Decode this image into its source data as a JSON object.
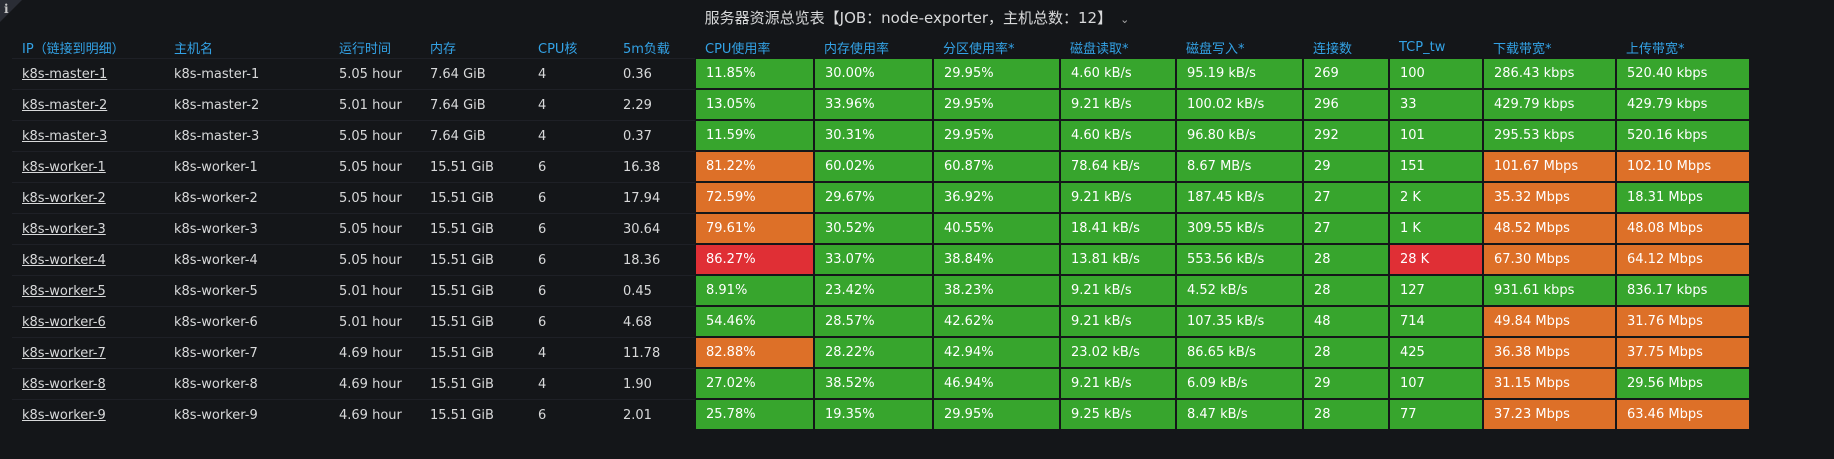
{
  "panel": {
    "title": "服务器资源总览表【JOB：node-exporter，主机总数：12】",
    "info_icon": "info-icon",
    "menu_icon": "chevron-down-icon"
  },
  "colors": {
    "ok": "#37a52d",
    "warn": "#dd7028",
    "crit": "#e02f35",
    "header": "#33a2e5"
  },
  "columns": [
    "IP（链接到明细）",
    "主机名",
    "运行时间",
    "内存",
    "CPU核",
    "5m负载",
    "CPU使用率",
    "内存使用率",
    "分区使用率*",
    "磁盘读取*",
    "磁盘写入*",
    "连接数",
    "TCP_tw",
    "下载带宽*",
    "上传带宽*"
  ],
  "rows": [
    {
      "cells": [
        "k8s-master-1",
        "k8s-master-1",
        "5.05 hour",
        "7.64 GiB",
        "4",
        "0.36",
        "11.85%",
        "30.00%",
        "29.95%",
        "4.60 kB/s",
        "95.19 kB/s",
        "269",
        "100",
        "286.43 kbps",
        "520.40 kbps"
      ],
      "status": [
        "",
        "",
        "",
        "",
        "",
        "",
        "ok",
        "ok",
        "ok",
        "ok",
        "ok",
        "ok",
        "ok",
        "ok",
        "ok"
      ]
    },
    {
      "cells": [
        "k8s-master-2",
        "k8s-master-2",
        "5.01 hour",
        "7.64 GiB",
        "4",
        "2.29",
        "13.05%",
        "33.96%",
        "29.95%",
        "9.21 kB/s",
        "100.02 kB/s",
        "296",
        "33",
        "429.79 kbps",
        "429.79 kbps"
      ],
      "status": [
        "",
        "",
        "",
        "",
        "",
        "",
        "ok",
        "ok",
        "ok",
        "ok",
        "ok",
        "ok",
        "ok",
        "ok",
        "ok"
      ]
    },
    {
      "cells": [
        "k8s-master-3",
        "k8s-master-3",
        "5.05 hour",
        "7.64 GiB",
        "4",
        "0.37",
        "11.59%",
        "30.31%",
        "29.95%",
        "4.60 kB/s",
        "96.80 kB/s",
        "292",
        "101",
        "295.53 kbps",
        "520.16 kbps"
      ],
      "status": [
        "",
        "",
        "",
        "",
        "",
        "",
        "ok",
        "ok",
        "ok",
        "ok",
        "ok",
        "ok",
        "ok",
        "ok",
        "ok"
      ]
    },
    {
      "cells": [
        "k8s-worker-1",
        "k8s-worker-1",
        "5.05 hour",
        "15.51 GiB",
        "6",
        "16.38",
        "81.22%",
        "60.02%",
        "60.87%",
        "78.64 kB/s",
        "8.67 MB/s",
        "29",
        "151",
        "101.67 Mbps",
        "102.10 Mbps"
      ],
      "status": [
        "",
        "",
        "",
        "",
        "",
        "",
        "warn",
        "ok",
        "ok",
        "ok",
        "ok",
        "ok",
        "ok",
        "warn",
        "warn"
      ]
    },
    {
      "cells": [
        "k8s-worker-2",
        "k8s-worker-2",
        "5.05 hour",
        "15.51 GiB",
        "6",
        "17.94",
        "72.59%",
        "29.67%",
        "36.92%",
        "9.21 kB/s",
        "187.45 kB/s",
        "27",
        "2 K",
        "35.32 Mbps",
        "18.31 Mbps"
      ],
      "status": [
        "",
        "",
        "",
        "",
        "",
        "",
        "warn",
        "ok",
        "ok",
        "ok",
        "ok",
        "ok",
        "ok",
        "warn",
        "ok"
      ]
    },
    {
      "cells": [
        "k8s-worker-3",
        "k8s-worker-3",
        "5.05 hour",
        "15.51 GiB",
        "6",
        "30.64",
        "79.61%",
        "30.52%",
        "40.55%",
        "18.41 kB/s",
        "309.55 kB/s",
        "27",
        "1 K",
        "48.52 Mbps",
        "48.08 Mbps"
      ],
      "status": [
        "",
        "",
        "",
        "",
        "",
        "",
        "warn",
        "ok",
        "ok",
        "ok",
        "ok",
        "ok",
        "ok",
        "warn",
        "warn"
      ]
    },
    {
      "cells": [
        "k8s-worker-4",
        "k8s-worker-4",
        "5.05 hour",
        "15.51 GiB",
        "6",
        "18.36",
        "86.27%",
        "33.07%",
        "38.84%",
        "13.81 kB/s",
        "553.56 kB/s",
        "28",
        "28 K",
        "67.30 Mbps",
        "64.12 Mbps"
      ],
      "status": [
        "",
        "",
        "",
        "",
        "",
        "",
        "crit",
        "ok",
        "ok",
        "ok",
        "ok",
        "ok",
        "crit",
        "warn",
        "warn"
      ]
    },
    {
      "cells": [
        "k8s-worker-5",
        "k8s-worker-5",
        "5.01 hour",
        "15.51 GiB",
        "6",
        "0.45",
        "8.91%",
        "23.42%",
        "38.23%",
        "9.21 kB/s",
        "4.52 kB/s",
        "28",
        "127",
        "931.61 kbps",
        "836.17 kbps"
      ],
      "status": [
        "",
        "",
        "",
        "",
        "",
        "",
        "ok",
        "ok",
        "ok",
        "ok",
        "ok",
        "ok",
        "ok",
        "ok",
        "ok"
      ]
    },
    {
      "cells": [
        "k8s-worker-6",
        "k8s-worker-6",
        "5.01 hour",
        "15.51 GiB",
        "6",
        "4.68",
        "54.46%",
        "28.57%",
        "42.62%",
        "9.21 kB/s",
        "107.35 kB/s",
        "48",
        "714",
        "49.84 Mbps",
        "31.76 Mbps"
      ],
      "status": [
        "",
        "",
        "",
        "",
        "",
        "",
        "ok",
        "ok",
        "ok",
        "ok",
        "ok",
        "ok",
        "ok",
        "warn",
        "warn"
      ]
    },
    {
      "cells": [
        "k8s-worker-7",
        "k8s-worker-7",
        "4.69 hour",
        "15.51 GiB",
        "4",
        "11.78",
        "82.88%",
        "28.22%",
        "42.94%",
        "23.02 kB/s",
        "86.65 kB/s",
        "28",
        "425",
        "36.38 Mbps",
        "37.75 Mbps"
      ],
      "status": [
        "",
        "",
        "",
        "",
        "",
        "",
        "warn",
        "ok",
        "ok",
        "ok",
        "ok",
        "ok",
        "ok",
        "warn",
        "warn"
      ]
    },
    {
      "cells": [
        "k8s-worker-8",
        "k8s-worker-8",
        "4.69 hour",
        "15.51 GiB",
        "4",
        "1.90",
        "27.02%",
        "38.52%",
        "46.94%",
        "9.21 kB/s",
        "6.09 kB/s",
        "29",
        "107",
        "31.15 Mbps",
        "29.56 Mbps"
      ],
      "status": [
        "",
        "",
        "",
        "",
        "",
        "",
        "ok",
        "ok",
        "ok",
        "ok",
        "ok",
        "ok",
        "ok",
        "warn",
        "ok"
      ]
    },
    {
      "cells": [
        "k8s-worker-9",
        "k8s-worker-9",
        "4.69 hour",
        "15.51 GiB",
        "6",
        "2.01",
        "25.78%",
        "19.35%",
        "29.95%",
        "9.25 kB/s",
        "8.47 kB/s",
        "28",
        "77",
        "37.23 Mbps",
        "63.46 Mbps"
      ],
      "status": [
        "",
        "",
        "",
        "",
        "",
        "",
        "ok",
        "ok",
        "ok",
        "ok",
        "ok",
        "ok",
        "ok",
        "warn",
        "warn"
      ]
    }
  ]
}
